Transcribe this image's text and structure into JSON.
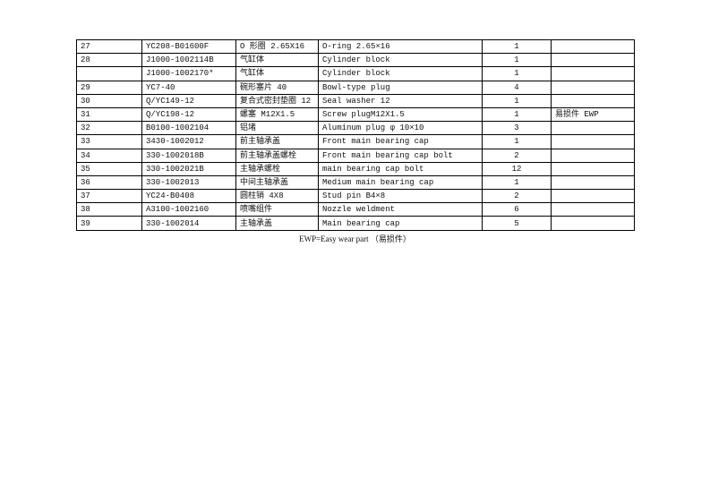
{
  "table": {
    "rows": [
      [
        "27",
        "YC208-B01600F",
        "O 形圈 2.65X16",
        "O-ring 2.65×16",
        "1"
      ],
      [
        "28",
        "J1000-1002114B",
        "气缸体",
        "Cylinder block",
        "1"
      ],
      [
        null,
        "J1000-1002170*",
        "气缸体",
        "Cylinder block",
        "1"
      ],
      [
        "29",
        "YC7-40",
        "碗形塞片 40",
        "Bowl-type plug",
        "4"
      ],
      [
        "30",
        "Q/YC149-12",
        "复合式密封垫圈 12",
        "Seal washer 12",
        "1"
      ],
      [
        "31",
        "Q/YC198-12",
        "螺塞 M12X1.5",
        "Screw plugM12X1.5",
        "1",
        "易损件 EWP"
      ],
      [
        "32",
        "B0100-1002104",
        "铝堵",
        "Aluminum plug φ 10×10",
        "3"
      ],
      [
        "33",
        "3430-1002012",
        "前主轴承盖",
        "Front main bearing cap",
        "1"
      ],
      [
        "34",
        "330-1002018B",
        "前主轴承盖螺栓",
        "Front main bearing cap bolt",
        "2"
      ],
      [
        "35",
        "330-1002021B",
        "主轴承螺栓",
        "main bearing cap bolt",
        "12"
      ],
      [
        "36",
        "330-1002013",
        "中间主轴承盖",
        "Medium main bearing cap",
        "1"
      ],
      [
        "37",
        "YC24-B0408",
        "圆柱销 4X8",
        "Stud pin B4×8",
        "2"
      ],
      [
        "38",
        "A3100-1002160",
        "喷嘴组件",
        "Nozzle weldment",
        "6"
      ],
      [
        "39",
        "330-1002014",
        "主轴承盖",
        "Main bearing cap",
        "5"
      ]
    ]
  },
  "footnote": "EWP=Easy wear part （易损件）"
}
